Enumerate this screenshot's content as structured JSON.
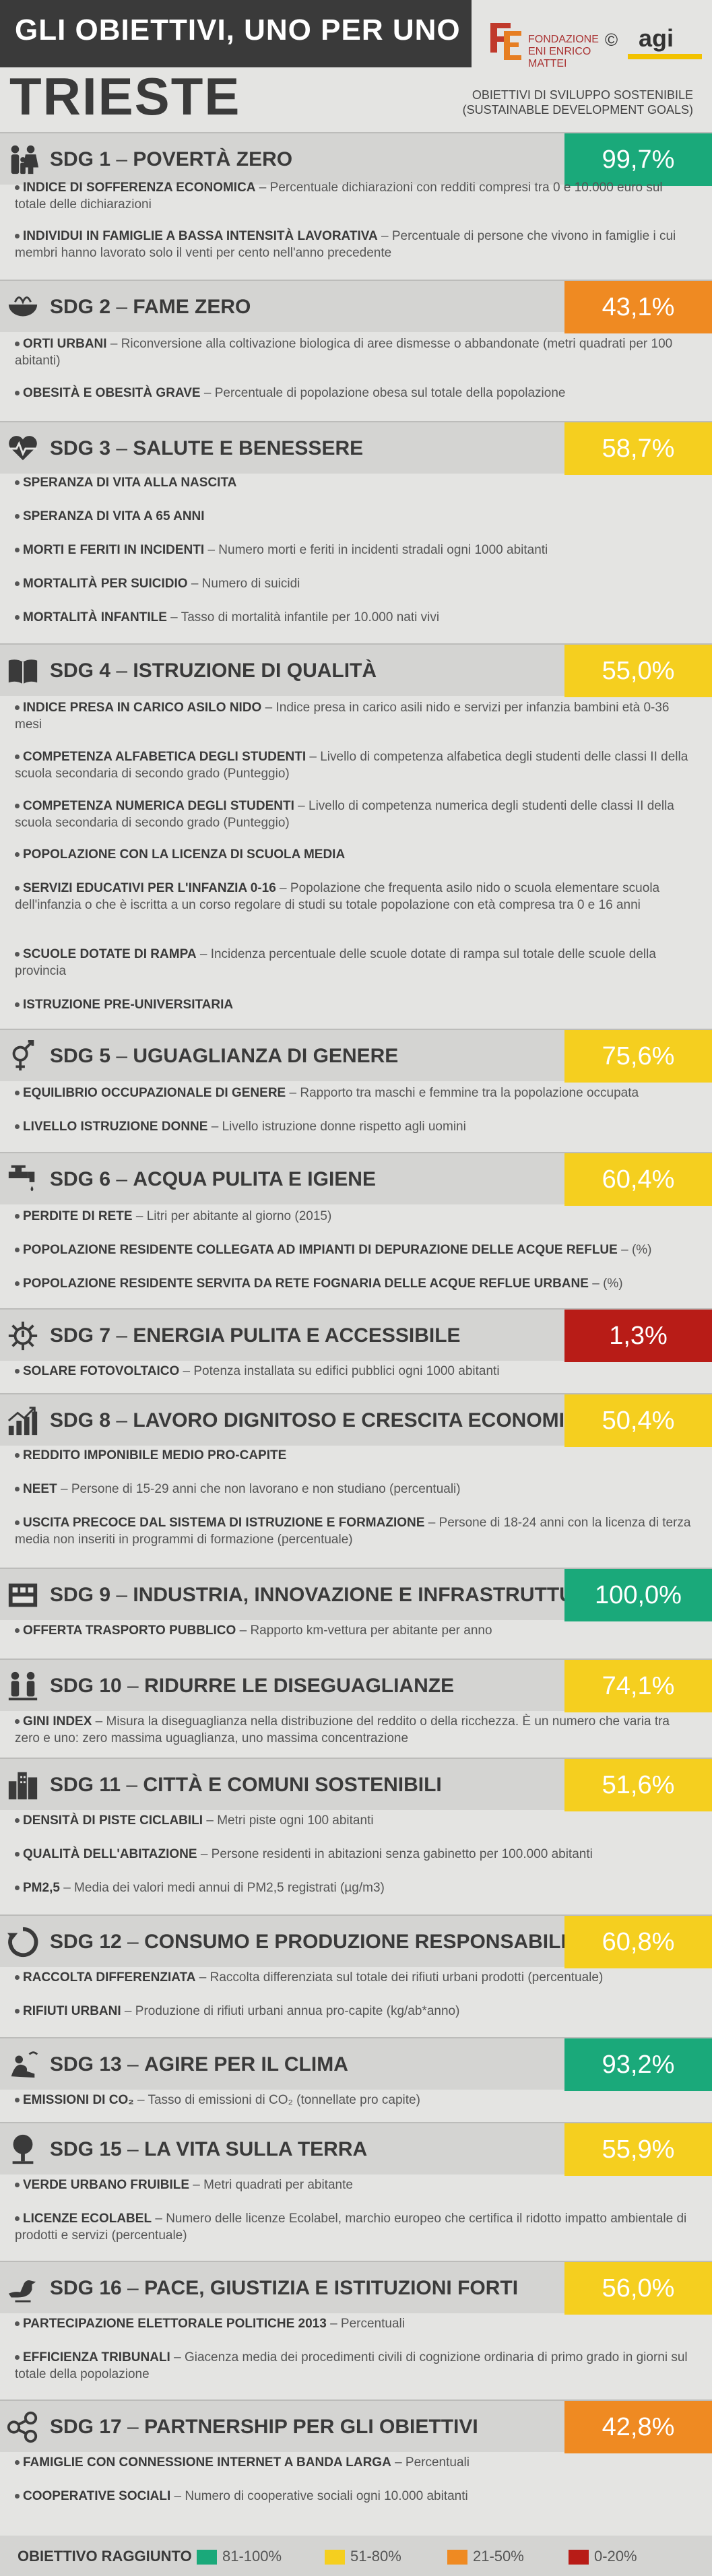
{
  "header": {
    "title": "GLI OBIETTIVI, UNO PER UNO",
    "city": "TRIESTE",
    "foundation": "FONDAZIONE ENI ENRICO MATTEI",
    "copyright": "©",
    "agency": "agi",
    "subtitle_line1": "OBIETTIVI DI SVILUPPO SOSTENIBILE",
    "subtitle_line2": "(SUSTAINABLE DEVELOPMENT GOALS)"
  },
  "colors": {
    "green": "#1aa97a",
    "yellow": "#f5cf1f",
    "orange": "#ef8a22",
    "red": "#b81c17"
  },
  "sdgs": [
    {
      "title": "SDG 1",
      "name": "POVERTÀ ZERO",
      "value": "99,7%",
      "color": "#1aa97a",
      "icon": "family-icon",
      "indicators": [
        {
          "name": "INDICE DI SOFFERENZA ECONOMICA",
          "desc": "Percentuale dichiarazioni con redditi compresi tra 0 e 10.000 euro sul totale delle dichiarazioni"
        },
        {
          "name": "INDIVIDUI IN FAMIGLIE A BASSA INTENSITÀ LAVORATIVA",
          "desc": "Percentuale di persone che vivono in famiglie i cui membri hanno lavorato solo il venti per cento nell'anno precedente"
        }
      ]
    },
    {
      "title": "SDG 2",
      "name": "FAME ZERO",
      "value": "43,1%",
      "color": "#ef8a22",
      "icon": "bowl-icon",
      "indicators": [
        {
          "name": "ORTI URBANI",
          "desc": "Riconversione alla coltivazione biologica di aree dismesse o abbandonate (metri quadrati per 100 abitanti)"
        },
        {
          "name": "OBESITÀ E OBESITÀ GRAVE",
          "desc": "Percentuale di popolazione obesa sul totale della popolazione"
        }
      ]
    },
    {
      "title": "SDG 3",
      "name": "SALUTE E BENESSERE",
      "value": "58,7%",
      "color": "#f5cf1f",
      "icon": "heartbeat-icon",
      "indicators": [
        {
          "name": "SPERANZA DI VITA ALLA NASCITA",
          "desc": ""
        },
        {
          "name": "SPERANZA DI VITA A 65 ANNI",
          "desc": ""
        },
        {
          "name": "MORTI E FERITI IN INCIDENTI",
          "desc": "Numero morti e feriti in incidenti stradali ogni 1000 abitanti"
        },
        {
          "name": "MORTALITÀ PER SUICIDIO",
          "desc": "Numero di suicidi"
        },
        {
          "name": "MORTALITÀ INFANTILE",
          "desc": "Tasso di mortalità infantile per 10.000 nati vivi"
        }
      ]
    },
    {
      "title": "SDG 4",
      "name": "ISTRUZIONE DI QUALITÀ",
      "value": "55,0%",
      "color": "#f5cf1f",
      "icon": "book-icon",
      "indicators": [
        {
          "name": "INDICE PRESA IN CARICO ASILO NIDO",
          "desc": "Indice presa in carico asili nido e servizi per infanzia bambini età 0-36 mesi"
        },
        {
          "name": "COMPETENZA ALFABETICA DEGLI STUDENTI",
          "desc": "Livello di competenza alfabetica degli studenti delle classi II della scuola secondaria di secondo grado (Punteggio)"
        },
        {
          "name": "COMPETENZA NUMERICA DEGLI STUDENTI",
          "desc": "Livello di competenza numerica degli studenti delle classi II della scuola secondaria di secondo grado (Punteggio)"
        },
        {
          "name": "POPOLAZIONE CON LA LICENZA DI SCUOLA MEDIA",
          "desc": ""
        },
        {
          "name": "SERVIZI EDUCATIVI PER L'INFANZIA 0-16",
          "desc": "Popolazione che frequenta asilo nido o scuola elementare scuola dell'infanzia o che è iscritta a un corso regolare di studi su totale popolazione con età compresa tra 0 e 16 anni"
        },
        {
          "name": "SCUOLE DOTATE DI RAMPA",
          "desc": "Incidenza percentuale delle scuole dotate di rampa sul totale delle scuole della provincia"
        },
        {
          "name": "ISTRUZIONE PRE-UNIVERSITARIA",
          "desc": ""
        }
      ]
    },
    {
      "title": "SDG 5",
      "name": "UGUAGLIANZA DI GENERE",
      "value": "75,6%",
      "color": "#f5cf1f",
      "icon": "gender-icon",
      "indicators": [
        {
          "name": "EQUILIBRIO OCCUPAZIONALE  DI GENERE",
          "desc": "Rapporto tra maschi e femmine tra la popolazione occupata"
        },
        {
          "name": "LIVELLO ISTRUZIONE DONNE",
          "desc": "Livello istruzione donne rispetto agli uomini"
        }
      ]
    },
    {
      "title": "SDG 6",
      "name": "ACQUA PULITA E IGIENE",
      "value": "60,4%",
      "color": "#f5cf1f",
      "icon": "faucet-icon",
      "indicators": [
        {
          "name": "PERDITE DI RETE",
          "desc": "Litri per abitante al giorno (2015)"
        },
        {
          "name": "POPOLAZIONE RESIDENTE COLLEGATA AD IMPIANTI DI DEPURAZIONE DELLE ACQUE REFLUE",
          "desc": "(%)"
        },
        {
          "name": "POPOLAZIONE RESIDENTE SERVITA DA RETE FOGNARIA DELLE ACQUE REFLUE URBANE",
          "desc": "(%)"
        }
      ]
    },
    {
      "title": "SDG 7",
      "name": "ENERGIA PULITA E ACCESSIBILE",
      "value": "1,3%",
      "color": "#b81c17",
      "icon": "power-icon",
      "indicators": [
        {
          "name": "SOLARE FOTOVOLTAICO",
          "desc": "Potenza installata su edifici pubblici ogni 1000 abitanti"
        }
      ]
    },
    {
      "title": "SDG 8",
      "name": "LAVORO DIGNITOSO E CRESCITA ECONOMICA",
      "value": "50,4%",
      "color": "#f5cf1f",
      "icon": "growth-chart-icon",
      "indicators": [
        {
          "name": "REDDITO IMPONIBILE MEDIO PRO-CAPITE",
          "desc": ""
        },
        {
          "name": "NEET",
          "desc": "Persone di 15-29 anni che non lavorano e non studiano (percentuali)"
        },
        {
          "name": "USCITA PRECOCE DAL SISTEMA DI ISTRUZIONE E FORMAZIONE",
          "desc": "Persone di 18-24 anni con la licenza di terza media non inseriti in programmi di formazione (percentuale)"
        }
      ]
    },
    {
      "title": "SDG 9",
      "name": "INDUSTRIA, INNOVAZIONE E INFRASTRUTTURE",
      "value": "100,0%",
      "color": "#1aa97a",
      "icon": "infrastructure-icon",
      "indicators": [
        {
          "name": "OFFERTA TRASPORTO PUBBLICO",
          "desc": "Rapporto km-vettura per abitante per anno"
        }
      ]
    },
    {
      "title": "SDG 10",
      "name": "RIDURRE LE DISEGUAGLIANZE",
      "value": "74,1%",
      "color": "#f5cf1f",
      "icon": "people-equality-icon",
      "indicators": [
        {
          "name": "GINI INDEX",
          "desc": "Misura la diseguaglianza nella distribuzione del reddito o della ricchezza. È un numero che varia tra zero e uno: zero massima uguaglianza, uno massima concentrazione"
        }
      ]
    },
    {
      "title": "SDG 11",
      "name": "CITTÀ E COMUNI SOSTENIBILI",
      "value": "51,6%",
      "color": "#f5cf1f",
      "icon": "city-icon",
      "indicators": [
        {
          "name": "DENSITÀ DI PISTE CICLABILI",
          "desc": "Metri piste ogni 100 abitanti"
        },
        {
          "name": "QUALITÀ DELL'ABITAZIONE",
          "desc": "Persone residenti in abitazioni senza gabinetto per 100.000 abitanti"
        },
        {
          "name": "PM2,5",
          "desc": "Media dei valori medi annui di PM2,5 registrati (µg/m3)"
        }
      ]
    },
    {
      "title": "SDG 12",
      "name": "CONSUMO E PRODUZIONE RESPONSABILI",
      "value": "60,8%",
      "color": "#f5cf1f",
      "icon": "recycle-icon",
      "indicators": [
        {
          "name": "RACCOLTA DIFFERENZIATA",
          "desc": "Raccolta differenziata sul totale dei rifiuti urbani prodotti (percentuale)"
        },
        {
          "name": "RIFIUTI URBANI",
          "desc": "Produzione di rifiuti urbani annua pro-capite (kg/ab*anno)"
        }
      ]
    },
    {
      "title": "SDG 13",
      "name": "AGIRE PER IL CLIMA",
      "value": "93,2%",
      "color": "#1aa97a",
      "icon": "climate-icon",
      "indicators": [
        {
          "name": "EMISSIONI DI CO₂",
          "desc": "Tasso di emissioni di CO₂ (tonnellate pro capite)"
        }
      ]
    },
    {
      "title": "SDG 15",
      "name": "LA VITA SULLA TERRA",
      "value": "55,9%",
      "color": "#f5cf1f",
      "icon": "tree-icon",
      "indicators": [
        {
          "name": "VERDE URBANO FRUIBILE",
          "desc": "Metri quadrati per abitante"
        },
        {
          "name": "LICENZE ECOLABEL",
          "desc": "Numero delle licenze Ecolabel,  marchio europeo che certifica il ridotto impatto ambientale di prodotti e servizi (percentuale)"
        }
      ]
    },
    {
      "title": "SDG 16",
      "name": "PACE, GIUSTIZIA E ISTITUZIONI FORTI",
      "value": "56,0%",
      "color": "#f5cf1f",
      "icon": "dove-icon",
      "indicators": [
        {
          "name": "PARTECIPAZIONE ELETTORALE POLITICHE 2013",
          "desc": "Percentuali"
        },
        {
          "name": "EFFICIENZA TRIBUNALI",
          "desc": "Giacenza media dei procedimenti civili di cognizione ordinaria di primo grado in giorni sul totale della popolazione"
        }
      ]
    },
    {
      "title": "SDG 17",
      "name": "PARTNERSHIP PER GLI OBIETTIVI",
      "value": "42,8%",
      "color": "#ef8a22",
      "icon": "network-icon",
      "indicators": [
        {
          "name": "FAMIGLIE CON CONNESSIONE INTERNET A BANDA LARGA",
          "desc": "Percentuali"
        },
        {
          "name": "COOPERATIVE SOCIALI",
          "desc": "Numero di cooperative sociali ogni 10.000 abitanti"
        }
      ]
    }
  ],
  "legend": {
    "title": "OBIETTIVO RAGGIUNTO",
    "items": [
      {
        "label": "81-100%",
        "color": "#1aa97a"
      },
      {
        "label": "51-80%",
        "color": "#f5cf1f"
      },
      {
        "label": "21-50%",
        "color": "#ef8a22"
      },
      {
        "label": "0-20%",
        "color": "#b81c17"
      }
    ]
  }
}
